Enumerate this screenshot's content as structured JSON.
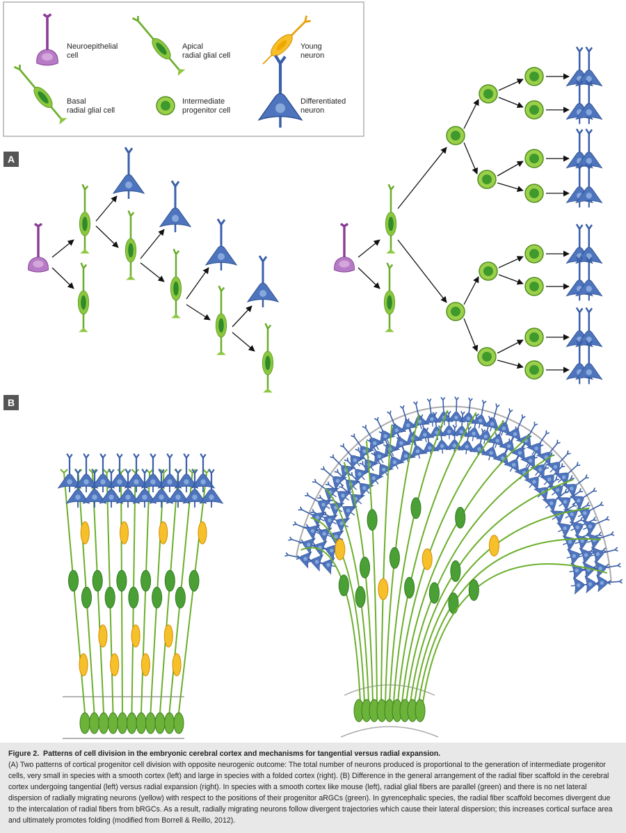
{
  "legend": {
    "items": [
      {
        "lines": [
          "Neuroepithelial",
          "cell"
        ]
      },
      {
        "lines": [
          "Apical",
          "radial glial cell"
        ]
      },
      {
        "lines": [
          "Young",
          "neuron"
        ]
      },
      {
        "lines": [
          "Basal",
          "radial glial cell"
        ]
      },
      {
        "lines": [
          "Intermediate",
          "progenitor cell"
        ]
      },
      {
        "lines": [
          "Differentiated",
          "neuron"
        ]
      }
    ]
  },
  "panels": {
    "a": "A",
    "b": "B"
  },
  "caption": {
    "label": "Figure 2.",
    "title": "Patterns of cell division in the embryonic cerebral cortex and mechanisms for tangential versus radial expansion.",
    "body": "(A) Two patterns of cortical progenitor cell division with opposite neurogenic outcome: The total number of neurons produced is proportional to the generation of intermediate progenitor cells, very small in species with a smooth cortex (left) and large in species with a folded cortex (right). (B) Difference in the general arrangement of the radial fiber scaffold in the cerebral cortex undergoing tangential (left) versus radial expansion (right). In species with a smooth cortex like mouse (left), radial glial fibers are parallel (green) and there is no net lateral dispersion of radially migrating neurons (yellow) with respect to the positions of their progenitor aRGCs (green). In gyrencephalic species, the radial fiber scaffold becomes divergent due to the intercalation of radial fibers from bRGCs. As a result, radially migrating neurons follow divergent trajectories which cause their lateral dispersion; this increases cortical surface area and ultimately promotes folding (modified from Borrell & Reillo, 2012)."
  }
}
